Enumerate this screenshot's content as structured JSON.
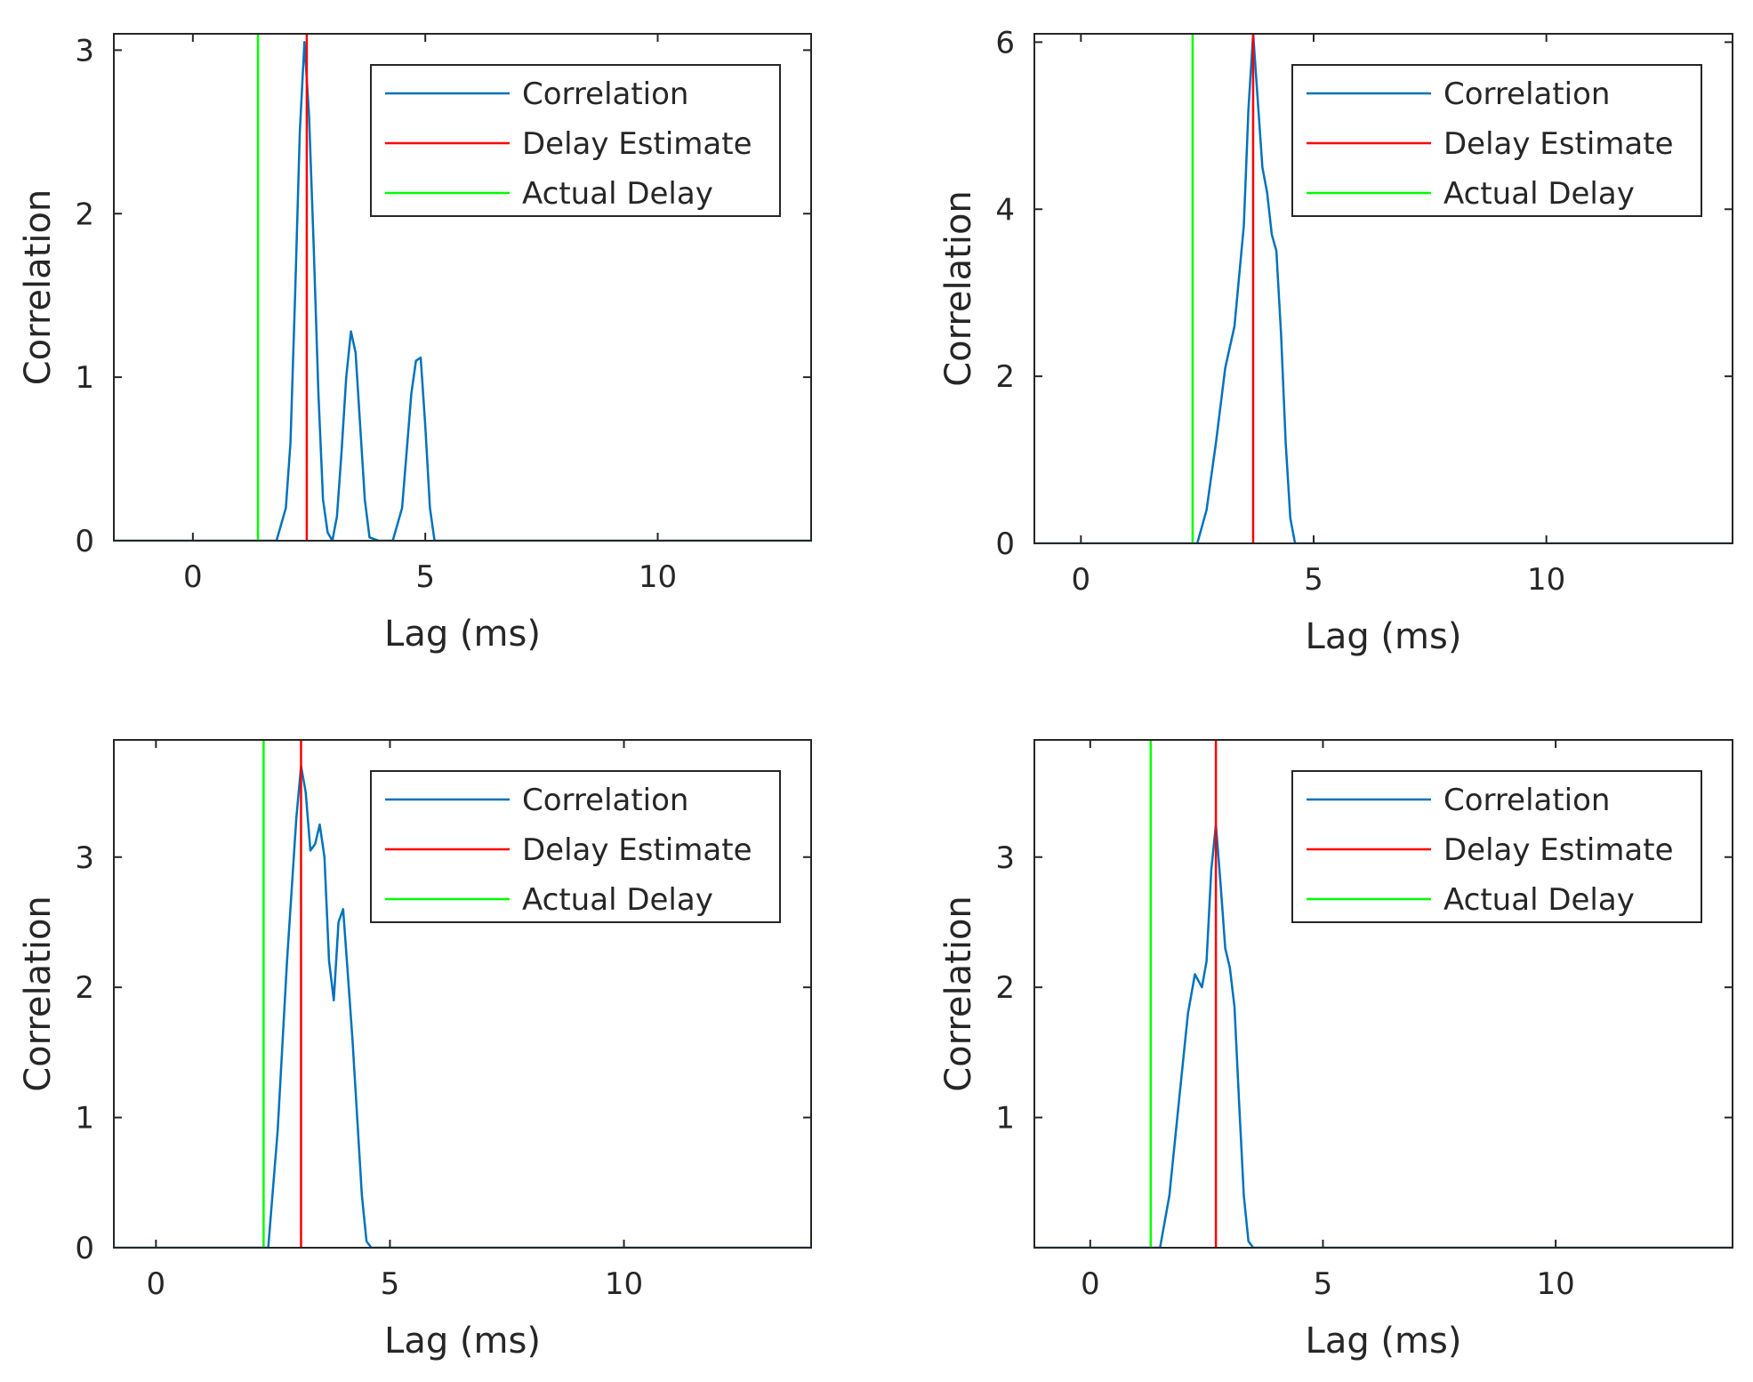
{
  "chart_data": [
    {
      "type": "line",
      "xlabel": "Lag (ms)",
      "ylabel": "Correlation",
      "xlim": [
        -1.7,
        13.3
      ],
      "ylim": [
        0,
        3.1
      ],
      "xticks": [
        0,
        5,
        10
      ],
      "yticks": [
        0,
        1,
        2,
        3
      ],
      "legend": {
        "placement": "top-right",
        "entries": [
          "Correlation",
          "Delay Estimate",
          "Actual Delay"
        ]
      },
      "series": [
        {
          "name": "Correlation",
          "color": "#0072BD",
          "x": [
            -1.7,
            1.8,
            2.0,
            2.1,
            2.2,
            2.3,
            2.4,
            2.5,
            2.6,
            2.7,
            2.8,
            2.9,
            3.0,
            3.1,
            3.2,
            3.3,
            3.4,
            3.5,
            3.6,
            3.7,
            3.8,
            4.0,
            4.3,
            4.5,
            4.6,
            4.7,
            4.8,
            4.9,
            5.0,
            5.1,
            5.2,
            13.3
          ],
          "y": [
            0,
            0,
            0.2,
            0.6,
            1.5,
            2.5,
            3.05,
            2.6,
            1.8,
            0.9,
            0.25,
            0.05,
            0.0,
            0.15,
            0.55,
            1.0,
            1.28,
            1.15,
            0.7,
            0.25,
            0.02,
            0,
            0,
            0.2,
            0.55,
            0.9,
            1.1,
            1.12,
            0.7,
            0.2,
            0,
            0
          ]
        }
      ],
      "delay_estimate_ms": 2.45,
      "actual_delay_ms": 1.4
    },
    {
      "type": "line",
      "xlabel": "Lag (ms)",
      "ylabel": "Correlation",
      "xlim": [
        -1.0,
        14.0
      ],
      "ylim": [
        0,
        6.1
      ],
      "xticks": [
        0,
        5,
        10
      ],
      "yticks": [
        0,
        2,
        4,
        6
      ],
      "legend": {
        "placement": "top-right",
        "entries": [
          "Correlation",
          "Delay Estimate",
          "Actual Delay"
        ]
      },
      "series": [
        {
          "name": "Correlation",
          "color": "#0072BD",
          "x": [
            -1.0,
            2.5,
            2.7,
            2.9,
            3.1,
            3.3,
            3.5,
            3.6,
            3.7,
            3.8,
            3.9,
            4.0,
            4.1,
            4.2,
            4.3,
            4.4,
            4.5,
            4.6,
            4.7,
            14.0
          ],
          "y": [
            0,
            0,
            0.4,
            1.2,
            2.1,
            2.6,
            3.8,
            5.2,
            6.1,
            5.3,
            4.5,
            4.2,
            3.7,
            3.5,
            2.5,
            1.2,
            0.3,
            0.0,
            0,
            0
          ]
        }
      ],
      "delay_estimate_ms": 3.7,
      "actual_delay_ms": 2.4
    },
    {
      "type": "line",
      "xlabel": "Lag (ms)",
      "ylabel": "Correlation",
      "xlim": [
        -0.9,
        14.0
      ],
      "ylim": [
        0,
        3.9
      ],
      "xticks": [
        0,
        5,
        10
      ],
      "yticks": [
        0,
        1,
        2,
        3
      ],
      "legend": {
        "placement": "top-right",
        "entries": [
          "Correlation",
          "Delay Estimate",
          "Actual Delay"
        ]
      },
      "series": [
        {
          "name": "Correlation",
          "color": "#0072BD",
          "x": [
            -0.9,
            2.4,
            2.6,
            2.8,
            3.0,
            3.1,
            3.2,
            3.3,
            3.4,
            3.5,
            3.6,
            3.7,
            3.8,
            3.9,
            4.0,
            4.1,
            4.2,
            4.3,
            4.4,
            4.5,
            4.6,
            14.0
          ],
          "y": [
            0,
            0,
            0.9,
            2.2,
            3.3,
            3.7,
            3.5,
            3.05,
            3.1,
            3.25,
            3.0,
            2.2,
            1.9,
            2.5,
            2.6,
            2.1,
            1.6,
            1.0,
            0.4,
            0.05,
            0,
            0
          ]
        }
      ],
      "delay_estimate_ms": 3.1,
      "actual_delay_ms": 2.3
    },
    {
      "type": "line",
      "xlabel": "Lag (ms)",
      "ylabel": "Correlation",
      "xlim": [
        -1.2,
        13.8
      ],
      "ylim": [
        0,
        3.9
      ],
      "xticks": [
        0,
        5,
        10
      ],
      "yticks": [
        1,
        2,
        3
      ],
      "legend": {
        "placement": "top-right",
        "entries": [
          "Correlation",
          "Delay Estimate",
          "Actual Delay"
        ]
      },
      "series": [
        {
          "name": "Correlation",
          "color": "#0072BD",
          "x": [
            -1.2,
            1.5,
            1.7,
            1.9,
            2.1,
            2.25,
            2.4,
            2.5,
            2.6,
            2.7,
            2.8,
            2.9,
            3.0,
            3.1,
            3.2,
            3.3,
            3.4,
            3.5,
            13.8
          ],
          "y": [
            0,
            0,
            0.4,
            1.1,
            1.8,
            2.1,
            2.0,
            2.2,
            2.9,
            3.25,
            2.8,
            2.3,
            2.15,
            1.85,
            1.1,
            0.4,
            0.05,
            0,
            0
          ]
        }
      ],
      "delay_estimate_ms": 2.7,
      "actual_delay_ms": 1.3
    }
  ],
  "colors": {
    "correlation": "#0072BD",
    "delay_estimate": "#ff0000",
    "actual_delay": "#00ff00",
    "axis": "#262626"
  }
}
